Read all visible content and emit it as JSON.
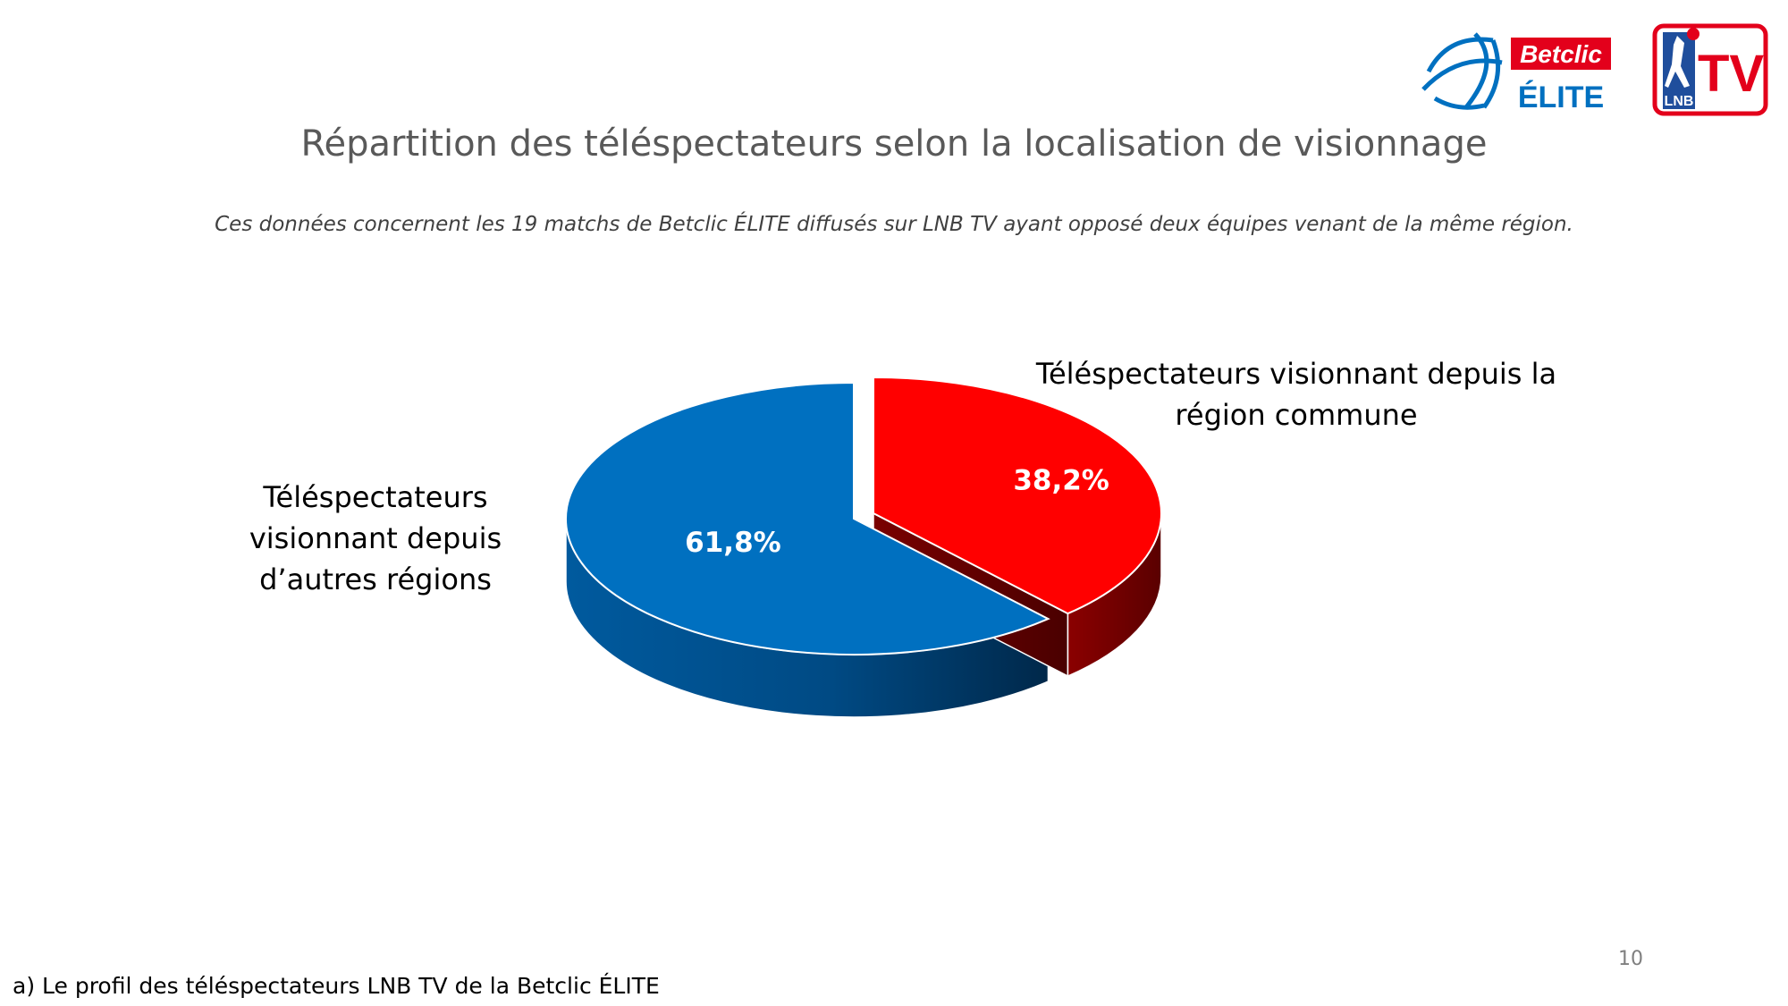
{
  "header": {
    "title": "Répartition des téléspectateurs selon la localisation de visionnage",
    "subtitle": "Ces données concernent les 19 matchs de Betclic ÉLITE diffusés sur LNB TV ayant opposé deux équipes venant de la même région."
  },
  "logos": {
    "elite_brand": "Betclic",
    "elite_name": "ÉLITE",
    "tv_brand": "LNB",
    "tv_name": "TV"
  },
  "chart_data": {
    "type": "pie",
    "title": "Répartition des téléspectateurs selon la localisation de visionnage",
    "series": [
      {
        "name": "Téléspectateurs visionnant depuis d’autres régions",
        "label_lines": [
          "Téléspectateurs",
          "visionnant depuis",
          "d’autres régions"
        ],
        "value": 61.8,
        "value_label": "61,8%",
        "color": "#0070C0"
      },
      {
        "name": "Téléspectateurs visionnant depuis la région commune",
        "label_lines": [
          "Téléspectateurs visionnant depuis la",
          "région commune"
        ],
        "value": 38.2,
        "value_label": "38,2%",
        "color": "#FF0000"
      }
    ],
    "style": "3d-exploded-pie"
  },
  "footer": {
    "page_number": "10",
    "section_label": "a) Le profil des téléspectateurs LNB TV de la Betclic ÉLITE"
  }
}
